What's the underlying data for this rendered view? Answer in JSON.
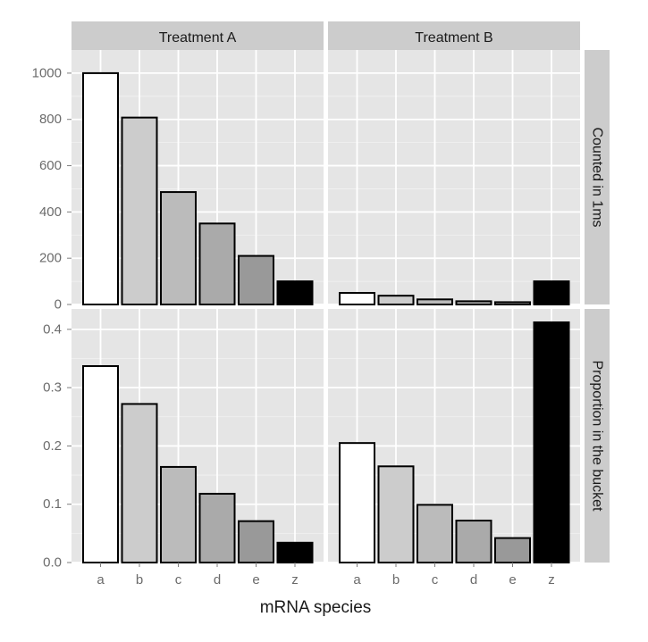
{
  "chart_data": {
    "type": "bar",
    "layout": "facet-grid",
    "xlabel": "mRNA species",
    "categories": [
      "a",
      "b",
      "c",
      "d",
      "e",
      "z"
    ],
    "columns": [
      "Treatment A",
      "Treatment B"
    ],
    "rows": [
      {
        "label": "Counted in 1ms",
        "ylim": [
          0,
          1100
        ],
        "yticks": [
          0,
          200,
          400,
          600,
          800,
          1000
        ],
        "yticklabels": [
          "0",
          "200",
          "400",
          "600",
          "800",
          "1000"
        ]
      },
      {
        "label": "Proportion in the bucket",
        "ylim": [
          0,
          0.435
        ],
        "yticks": [
          0.0,
          0.1,
          0.2,
          0.3,
          0.4
        ],
        "yticklabels": [
          "0.0",
          "0.1",
          "0.2",
          "0.3",
          "0.4"
        ]
      }
    ],
    "panels": [
      {
        "row": 0,
        "col": 0,
        "values": [
          1000,
          808,
          486,
          350,
          210,
          100
        ]
      },
      {
        "row": 0,
        "col": 1,
        "values": [
          50,
          38,
          22,
          14,
          10,
          100
        ]
      },
      {
        "row": 1,
        "col": 0,
        "values": [
          0.337,
          0.272,
          0.164,
          0.118,
          0.071,
          0.034
        ]
      },
      {
        "row": 1,
        "col": 1,
        "values": [
          0.205,
          0.165,
          0.099,
          0.072,
          0.042,
          0.412
        ]
      }
    ],
    "bar_fill_colors": [
      "#ffffff",
      "#cccccc",
      "#bbbbbb",
      "#aaaaaa",
      "#999999",
      "#000000"
    ],
    "panel_background": "#e5e5e5",
    "strip_background": "#cccccc",
    "grid_color": "#ffffff",
    "grid": true,
    "legend": "none"
  }
}
